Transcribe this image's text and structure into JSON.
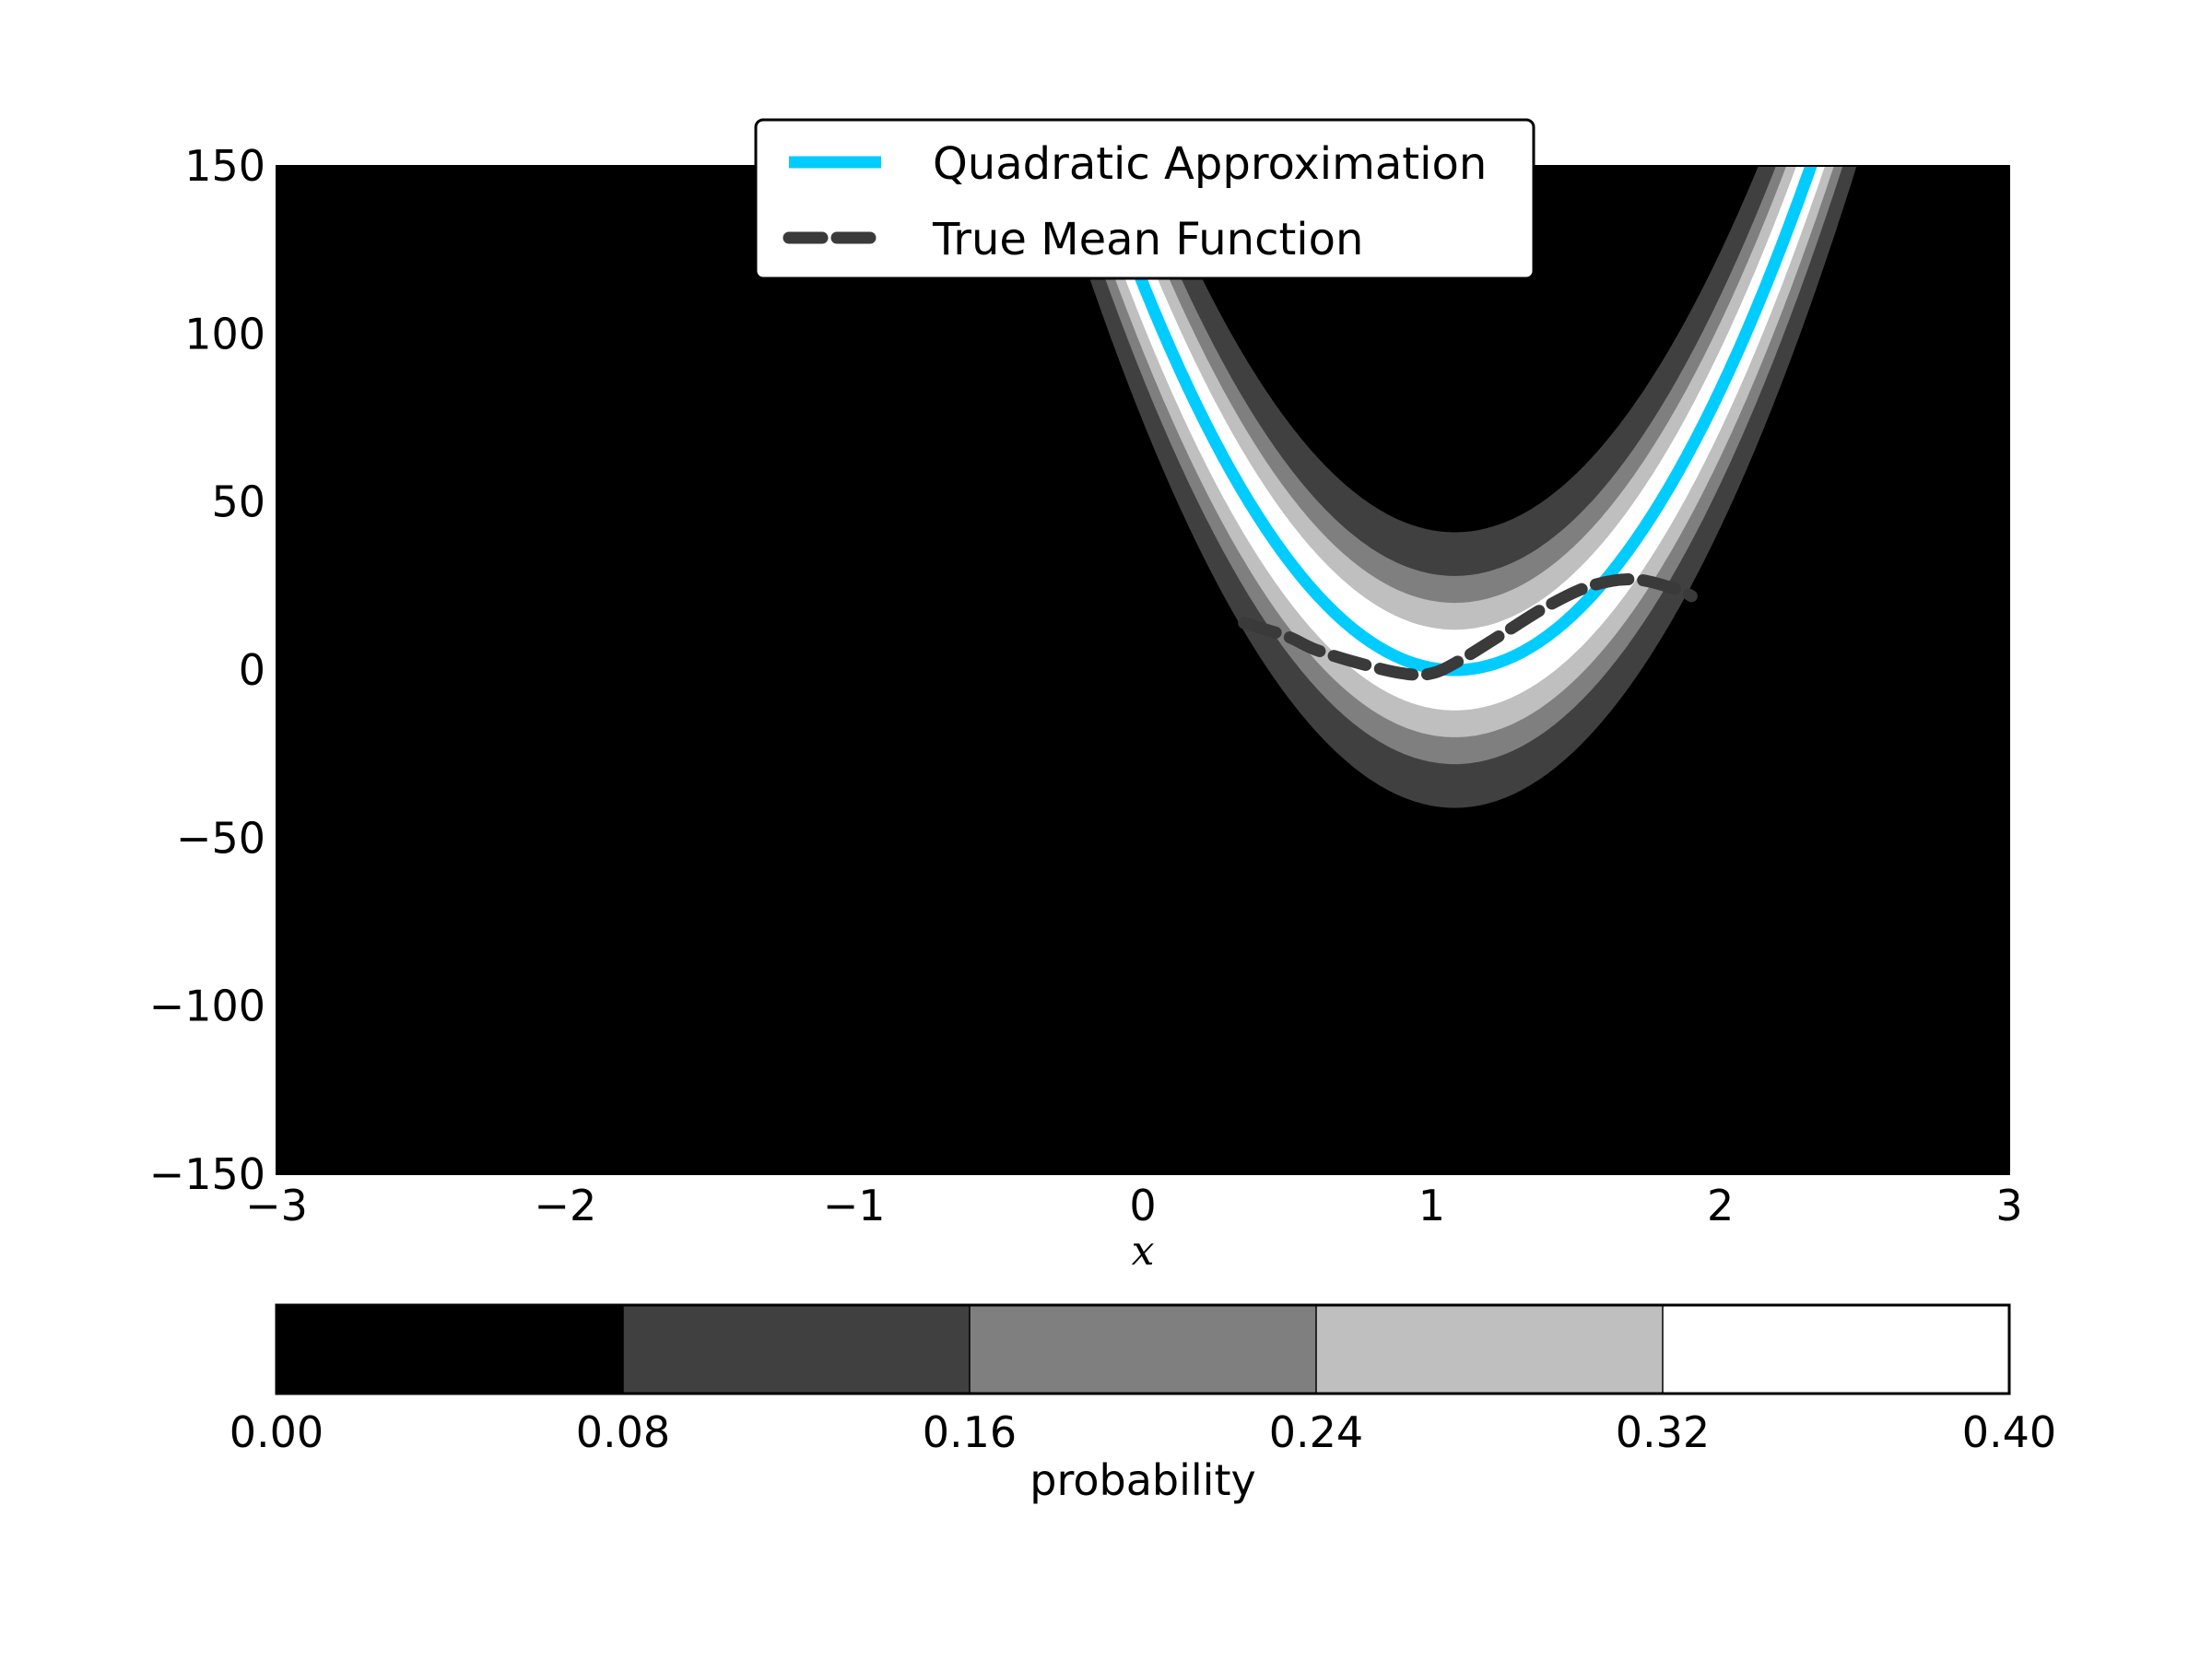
{
  "chart_data": {
    "type": "line",
    "xlabel": "x",
    "ylabel": "",
    "title": "",
    "xlim": [
      -3,
      3
    ],
    "ylim": [
      -150,
      150
    ],
    "xticks": [
      -3,
      -2,
      -1,
      0,
      1,
      2,
      3
    ],
    "xtick_labels": [
      "−3",
      "−2",
      "−1",
      "0",
      "1",
      "2",
      "3"
    ],
    "yticks": [
      150,
      100,
      50,
      0,
      -50,
      -100,
      -150
    ],
    "ytick_labels": [
      "150",
      "100",
      "50",
      "0",
      "−50",
      "−100",
      "−150"
    ],
    "grid": false,
    "legend_position": "top-center",
    "background": "probability density contours",
    "series": [
      {
        "name": "Quadratic Approximation",
        "style": "solid",
        "color": "#00ccff",
        "vertex_x": 1.08,
        "vertex_y": 0,
        "points": [
          [
            0.0,
            115
          ],
          [
            0.25,
            72
          ],
          [
            0.5,
            37
          ],
          [
            0.75,
            12
          ],
          [
            1.0,
            0.6
          ],
          [
            1.08,
            0
          ],
          [
            1.25,
            3
          ],
          [
            1.5,
            19
          ],
          [
            1.75,
            48
          ],
          [
            2.0,
            91
          ],
          [
            2.25,
            142
          ],
          [
            2.3,
            150
          ]
        ]
      },
      {
        "name": "True Mean Function",
        "style": "dashed",
        "color": "#3a3a3a",
        "points": [
          [
            0.35,
            14
          ],
          [
            0.5,
            10
          ],
          [
            0.6,
            6
          ],
          [
            0.75,
            2
          ],
          [
            0.9,
            -1
          ],
          [
            1.0,
            -1
          ],
          [
            1.1,
            3
          ],
          [
            1.25,
            11
          ],
          [
            1.4,
            19
          ],
          [
            1.55,
            25
          ],
          [
            1.7,
            27
          ],
          [
            1.85,
            24
          ],
          [
            1.9,
            22
          ]
        ]
      }
    ],
    "contour_band_halfwidths": {
      "white": 12,
      "light_gray": 20,
      "mid_gray": 28,
      "dark_gray": 41
    },
    "colorbar": {
      "label": "probability",
      "ticks": [
        "0.00",
        "0.08",
        "0.16",
        "0.24",
        "0.32",
        "0.40"
      ],
      "levels": [
        0.0,
        0.08,
        0.16,
        0.24,
        0.32,
        0.4
      ],
      "colors": [
        "#000000",
        "#404040",
        "#7f7f7f",
        "#bfbfbf",
        "#ffffff"
      ]
    }
  }
}
